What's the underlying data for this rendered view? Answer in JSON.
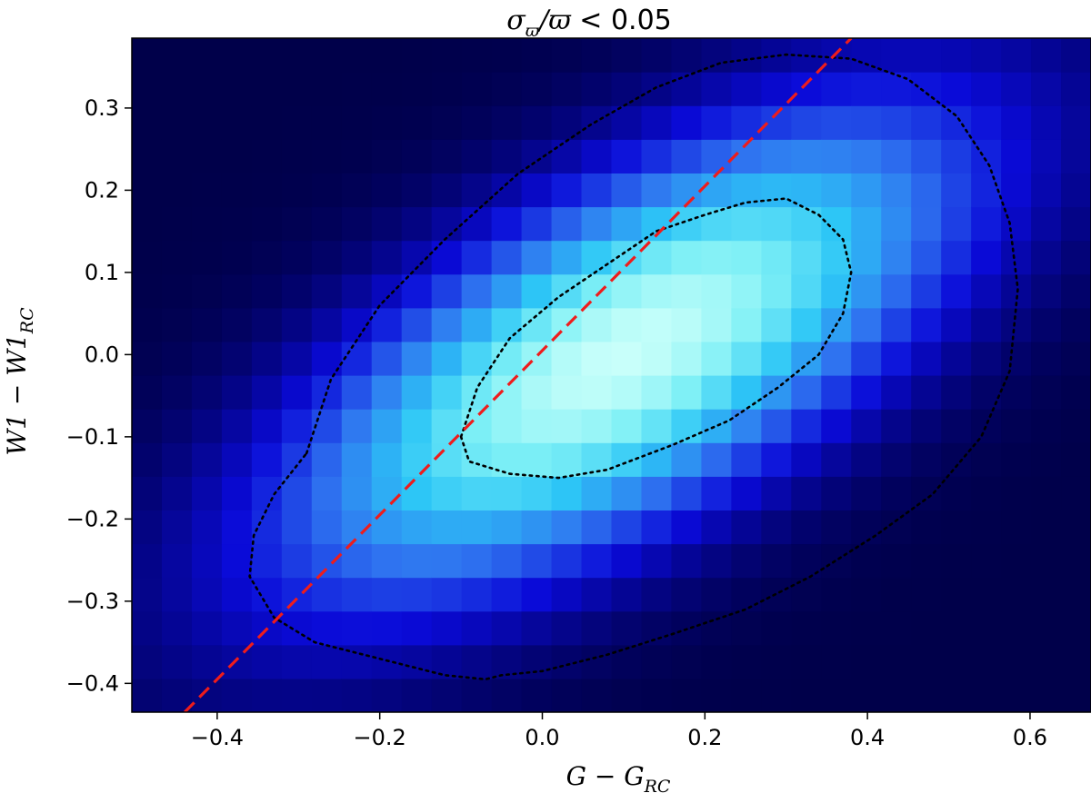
{
  "chart_data": {
    "type": "heatmap",
    "title": {
      "sym": "σ",
      "sub": "ϖ",
      "rest": "/ϖ",
      "cmp": " < 0.05"
    },
    "xlabel": {
      "main": "G − G",
      "sub": "RC"
    },
    "ylabel": {
      "main": "W1 − W1",
      "sub": "RC"
    },
    "xlim": [
      -0.505,
      0.675
    ],
    "ylim": [
      -0.435,
      0.385
    ],
    "xticks": [
      -0.4,
      -0.2,
      0.0,
      0.2,
      0.4,
      0.6
    ],
    "xtick_labels": [
      "−0.4",
      "−0.2",
      "0.0",
      "0.2",
      "0.4",
      "0.6"
    ],
    "yticks": [
      -0.4,
      -0.3,
      -0.2,
      -0.1,
      0.0,
      0.1,
      0.2,
      0.3
    ],
    "ytick_labels": [
      "−0.4",
      "−0.3",
      "−0.2",
      "−0.1",
      "0.0",
      "0.1",
      "0.2",
      "0.3"
    ],
    "grid": false,
    "colormap": [
      "#00004a",
      "#0a0ad8",
      "#2f74f0",
      "#2dc6f6",
      "#7ef0f6",
      "#c8fffa"
    ],
    "density": {
      "x_bins": 32,
      "y_bins": 20,
      "center": [
        0.1,
        0.0
      ],
      "sigma_along": 0.3,
      "sigma_across": 0.12,
      "slope_deg": 31
    },
    "contours": [
      {
        "level": "inner",
        "color": "#000000",
        "style": "dotted",
        "points": [
          [
            -0.1,
            -0.1
          ],
          [
            -0.08,
            -0.04
          ],
          [
            -0.04,
            0.02
          ],
          [
            0.02,
            0.07
          ],
          [
            0.08,
            0.11
          ],
          [
            0.14,
            0.15
          ],
          [
            0.2,
            0.17
          ],
          [
            0.25,
            0.185
          ],
          [
            0.3,
            0.19
          ],
          [
            0.34,
            0.17
          ],
          [
            0.37,
            0.14
          ],
          [
            0.38,
            0.1
          ],
          [
            0.37,
            0.05
          ],
          [
            0.34,
            0.0
          ],
          [
            0.29,
            -0.04
          ],
          [
            0.23,
            -0.08
          ],
          [
            0.16,
            -0.11
          ],
          [
            0.08,
            -0.14
          ],
          [
            0.02,
            -0.15
          ],
          [
            -0.04,
            -0.145
          ],
          [
            -0.09,
            -0.13
          ],
          [
            -0.1,
            -0.1
          ]
        ]
      },
      {
        "level": "outer",
        "color": "#000000",
        "style": "dotted",
        "points": [
          [
            -0.29,
            -0.12
          ],
          [
            -0.26,
            -0.03
          ],
          [
            -0.2,
            0.06
          ],
          [
            -0.12,
            0.14
          ],
          [
            -0.03,
            0.22
          ],
          [
            0.06,
            0.28
          ],
          [
            0.14,
            0.325
          ],
          [
            0.22,
            0.355
          ],
          [
            0.3,
            0.365
          ],
          [
            0.38,
            0.36
          ],
          [
            0.45,
            0.335
          ],
          [
            0.51,
            0.29
          ],
          [
            0.55,
            0.23
          ],
          [
            0.575,
            0.16
          ],
          [
            0.585,
            0.08
          ],
          [
            0.575,
            -0.02
          ],
          [
            0.54,
            -0.1
          ],
          [
            0.48,
            -0.17
          ],
          [
            0.41,
            -0.22
          ],
          [
            0.33,
            -0.27
          ],
          [
            0.25,
            -0.31
          ],
          [
            0.16,
            -0.34
          ],
          [
            0.08,
            -0.365
          ],
          [
            0.0,
            -0.385
          ],
          [
            -0.05,
            -0.39
          ],
          [
            -0.07,
            -0.395
          ],
          [
            -0.12,
            -0.39
          ],
          [
            -0.2,
            -0.37
          ],
          [
            -0.28,
            -0.35
          ],
          [
            -0.33,
            -0.32
          ],
          [
            -0.36,
            -0.27
          ],
          [
            -0.355,
            -0.22
          ],
          [
            -0.33,
            -0.17
          ],
          [
            -0.29,
            -0.12
          ]
        ]
      }
    ],
    "reference_line": {
      "color": "#ee1c1c",
      "style": "dashed",
      "points": [
        [
          -0.44,
          -0.435
        ],
        [
          0.38,
          0.385
        ]
      ]
    }
  }
}
